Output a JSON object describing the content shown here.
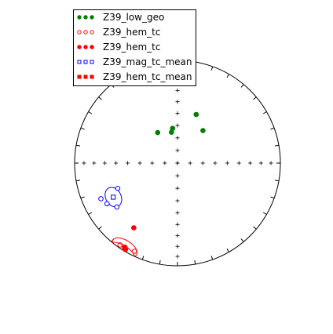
{
  "chart_data": {
    "type": "scatter",
    "projection": "equal-area stereonet",
    "legend_placement": "top-left",
    "colors": {
      "green": "#008000",
      "red": "#ff0000",
      "blue": "#0000ff"
    },
    "series": [
      {
        "name": "Z39_low_geo",
        "marker": "circle",
        "filled": true,
        "color": "#008000",
        "points": [
          {
            "dec": 38,
            "inc": 57
          },
          {
            "dec": 21,
            "inc": 48
          },
          {
            "dec": 327,
            "inc": 61
          },
          {
            "dec": 352,
            "inc": 62
          },
          {
            "dec": 349,
            "inc": 65
          }
        ]
      },
      {
        "name": "Z39_hem_tc",
        "marker": "circle",
        "filled": false,
        "color": "#ff0000",
        "points": [
          {
            "dec": 206,
            "inc": 5
          },
          {
            "dec": 215,
            "inc": 3
          }
        ]
      },
      {
        "name": "Z39_hem_tc",
        "marker": "circle",
        "filled": true,
        "color": "#ff0000",
        "points": [
          {
            "dec": 214,
            "inc": 25
          },
          {
            "dec": 212,
            "inc": 4
          },
          {
            "dec": 211,
            "inc": 2
          }
        ]
      },
      {
        "name": "Z39_mag_tc_mean",
        "marker": "square",
        "filled": false,
        "color": "#0000ff",
        "points": [
          {
            "dec": 242,
            "inc": 30
          }
        ],
        "cone": {
          "a95": 7
        }
      },
      {
        "name": "Z39_hem_tc_mean",
        "marker": "square",
        "filled": true,
        "color": "#ff0000",
        "points": [
          {
            "dec": 212,
            "inc": 3
          }
        ],
        "cone": {
          "a95": 8
        }
      }
    ],
    "extra_blue_points": [
      {
        "dec": 245,
        "inc": 19
      },
      {
        "dec": 234,
        "inc": 28
      },
      {
        "dec": 240,
        "inc": 22
      },
      {
        "dec": 247,
        "inc": 37
      }
    ]
  }
}
